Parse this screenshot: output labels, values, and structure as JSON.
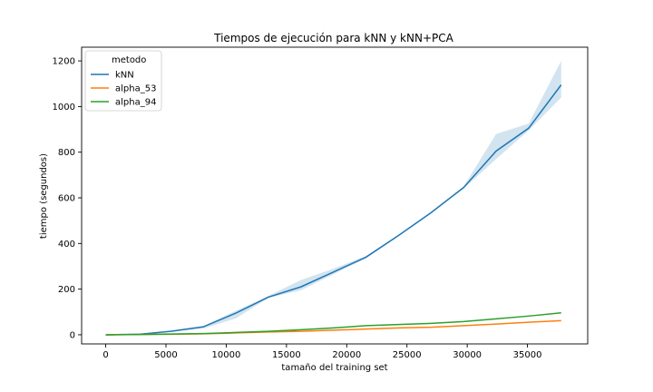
{
  "chart_data": {
    "type": "line",
    "title": "Tiempos de ejecución para kNN y kNN+PCA",
    "xlabel": "tamaño del training set",
    "ylabel": "tiempo (segundos)",
    "xlim": [
      -2000,
      40000
    ],
    "ylim": [
      -40,
      1260
    ],
    "xticks": [
      0,
      5000,
      10000,
      15000,
      20000,
      25000,
      30000,
      35000
    ],
    "yticks": [
      0,
      200,
      400,
      600,
      800,
      1000,
      1200
    ],
    "grid": false,
    "legend": {
      "title": "metodo",
      "position": "top-left"
    },
    "x": [
      0,
      2700,
      5400,
      8100,
      10800,
      13500,
      16200,
      18900,
      21600,
      24300,
      27000,
      29700,
      32400,
      35100,
      37800
    ],
    "series": [
      {
        "name": "kNN",
        "color": "#1f77b4",
        "values": [
          0,
          2,
          15,
          35,
          95,
          165,
          210,
          275,
          340,
          435,
          535,
          645,
          805,
          905,
          1095
        ],
        "band_low": [
          0,
          1,
          12,
          27,
          72,
          162,
          195,
          265,
          335,
          432,
          532,
          640,
          770,
          895,
          1040
        ],
        "band_high": [
          0,
          3,
          18,
          38,
          105,
          170,
          240,
          290,
          345,
          438,
          538,
          650,
          880,
          925,
          1200
        ]
      },
      {
        "name": "alpha_53",
        "color": "#ff7f0e",
        "values": [
          0,
          1,
          2,
          4,
          8,
          12,
          15,
          20,
          25,
          30,
          33,
          40,
          47,
          55,
          62
        ]
      },
      {
        "name": "alpha_94",
        "color": "#2ca02c",
        "values": [
          0,
          1,
          3,
          5,
          10,
          15,
          22,
          30,
          40,
          45,
          50,
          58,
          70,
          82,
          96
        ]
      }
    ]
  }
}
